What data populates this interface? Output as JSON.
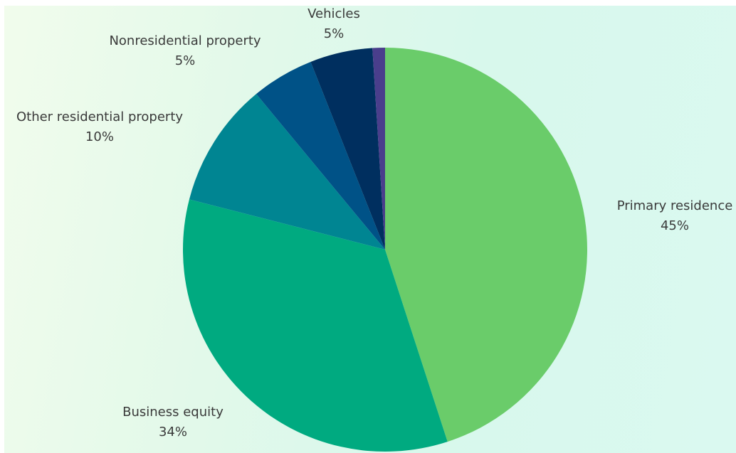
{
  "chart_data": {
    "type": "pie",
    "title": "",
    "slices": [
      {
        "label": "Primary residence",
        "percent_label": "45%",
        "value": 45,
        "color": "#6acc6a"
      },
      {
        "label": "Business equity",
        "percent_label": "34%",
        "value": 34,
        "color": "#00aa80"
      },
      {
        "label": "Other residential property",
        "percent_label": "10%",
        "value": 10,
        "color": "#008592"
      },
      {
        "label": "Nonresidential property",
        "percent_label": "5%",
        "value": 5,
        "color": "#005287"
      },
      {
        "label": "Vehicles",
        "percent_label": "5%",
        "value": 5,
        "color": "#002f5f"
      },
      {
        "label": "",
        "percent_label": "",
        "value": 1,
        "color": "#4a3e8c"
      }
    ],
    "start_angle_deg": 0,
    "direction": "clockwise",
    "legend": "none (labels outside slices)"
  }
}
